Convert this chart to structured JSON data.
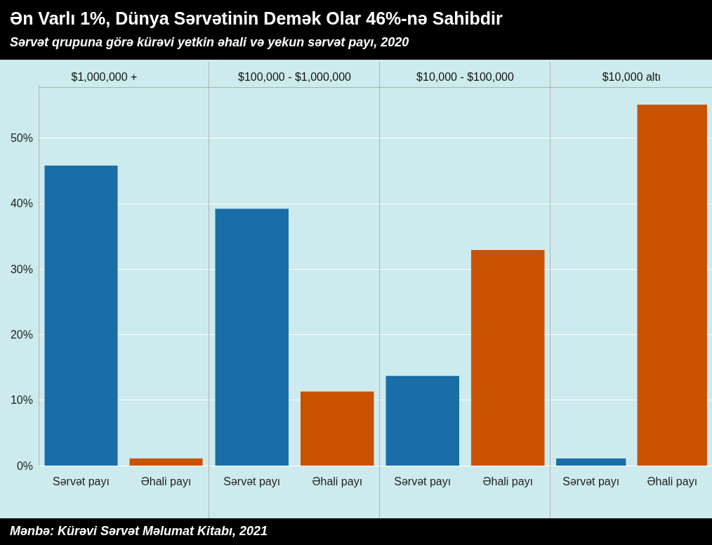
{
  "chart_data": [
    {
      "type": "other",
      "title": "Ən Varlı 1%, Dünya Sərvətinin Demək Olar 46%-nə Sahibdir",
      "subtitle": "Sərvət qrupuna görə kürəvi yetkin əhali və yekun sərvət payı, 2020",
      "annotations": [
        "Mənbə: Kürəvi Sərvət Məlumat Kitabı, 2021"
      ]
    },
    {
      "type": "bar",
      "title": "$1,000,000 +",
      "categories": [
        "Sərvət payı",
        "Əhali payı"
      ],
      "values": [
        45.8,
        1.1
      ],
      "colors": [
        "#1a6ea8",
        "#c85200"
      ],
      "ylim": [
        0,
        58
      ],
      "yticks": [
        {
          "value": 0,
          "label": "0%"
        },
        {
          "value": 10,
          "label": "10%"
        },
        {
          "value": 20,
          "label": "20%"
        },
        {
          "value": 30,
          "label": "30%"
        },
        {
          "value": 40,
          "label": "40%"
        },
        {
          "value": 50,
          "label": "50%"
        }
      ],
      "grid": "y"
    },
    {
      "type": "bar",
      "title": "$100,000 - $1,000,000",
      "categories": [
        "Sərvət payı",
        "Əhali payı"
      ],
      "values": [
        39.2,
        11.3
      ],
      "colors": [
        "#1a6ea8",
        "#c85200"
      ],
      "ylim": [
        0,
        58
      ],
      "yticks": [
        {
          "value": 0,
          "label": null
        },
        {
          "value": 10,
          "label": null
        },
        {
          "value": 20,
          "label": null
        },
        {
          "value": 30,
          "label": null
        },
        {
          "value": 40,
          "label": null
        },
        {
          "value": 50,
          "label": null
        }
      ],
      "grid": "y",
      "tick_labels": "x"
    },
    {
      "type": "bar",
      "title": "$10,000 - $100,000",
      "categories": [
        "Sərvət payı",
        "Əhali payı"
      ],
      "values": [
        13.7,
        32.9
      ],
      "colors": [
        "#1a6ea8",
        "#c85200"
      ],
      "ylim": [
        0,
        58
      ],
      "yticks": [
        {
          "value": 0,
          "label": null
        },
        {
          "value": 10,
          "label": null
        },
        {
          "value": 20,
          "label": null
        },
        {
          "value": 30,
          "label": null
        },
        {
          "value": 40,
          "label": null
        },
        {
          "value": 50,
          "label": null
        }
      ],
      "grid": "y",
      "tick_labels": "x"
    },
    {
      "type": "bar",
      "title": "$10,000 altı",
      "categories": [
        "Sərvət payı",
        "Əhali payı"
      ],
      "values": [
        1.1,
        55.1
      ],
      "colors": [
        "#1a6ea8",
        "#c85200"
      ],
      "ylim": [
        0,
        58
      ],
      "yticks": [
        {
          "value": 0,
          "label": null
        },
        {
          "value": 10,
          "label": null
        },
        {
          "value": 20,
          "label": null
        },
        {
          "value": 30,
          "label": null
        },
        {
          "value": 40,
          "label": null
        },
        {
          "value": 50,
          "label": null
        }
      ],
      "grid": "y",
      "tick_labels": "x"
    }
  ]
}
